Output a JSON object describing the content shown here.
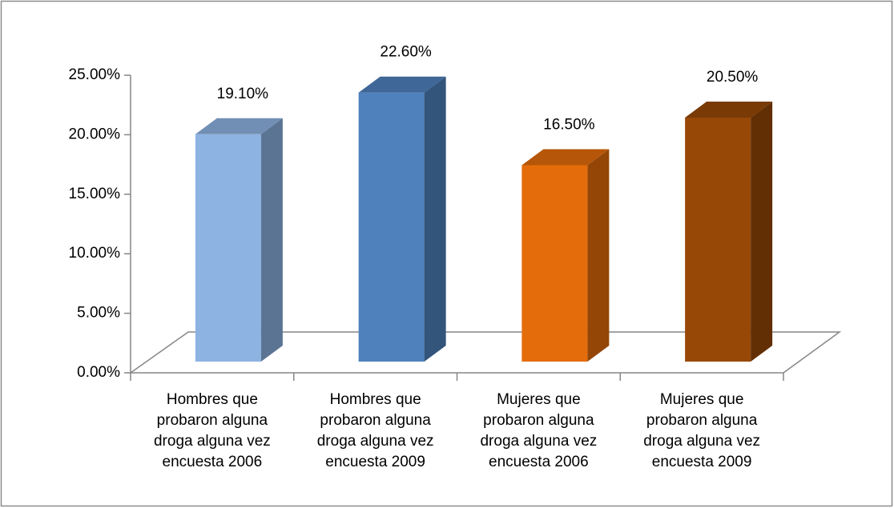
{
  "chart_data": {
    "type": "bar3d",
    "categories": [
      "Hombres que\nprobaron alguna\ndroga alguna vez\nencuesta 2006",
      "Hombres que\nprobaron alguna\ndroga alguna vez\nencuesta 2009",
      "Mujeres que\nprobaron alguna\ndroga alguna vez\nencuesta 2006",
      "Mujeres que\nprobaron alguna\ndroga alguna vez\nencuesta 2009"
    ],
    "values": [
      19.1,
      22.6,
      16.5,
      20.5
    ],
    "value_labels": [
      "19.10%",
      "22.60%",
      "16.50%",
      "20.50%"
    ],
    "colors": [
      "#8db3e2",
      "#4f81bd",
      "#e46c0a",
      "#974806"
    ],
    "ylim": [
      0,
      25
    ],
    "yticks": [
      {
        "value": 0,
        "label": "0.00%"
      },
      {
        "value": 5,
        "label": "5.00%"
      },
      {
        "value": 10,
        "label": "10.00%"
      },
      {
        "value": 15,
        "label": "15.00%"
      },
      {
        "value": 20,
        "label": "20.00%"
      },
      {
        "value": 25,
        "label": "25.00%"
      }
    ]
  }
}
